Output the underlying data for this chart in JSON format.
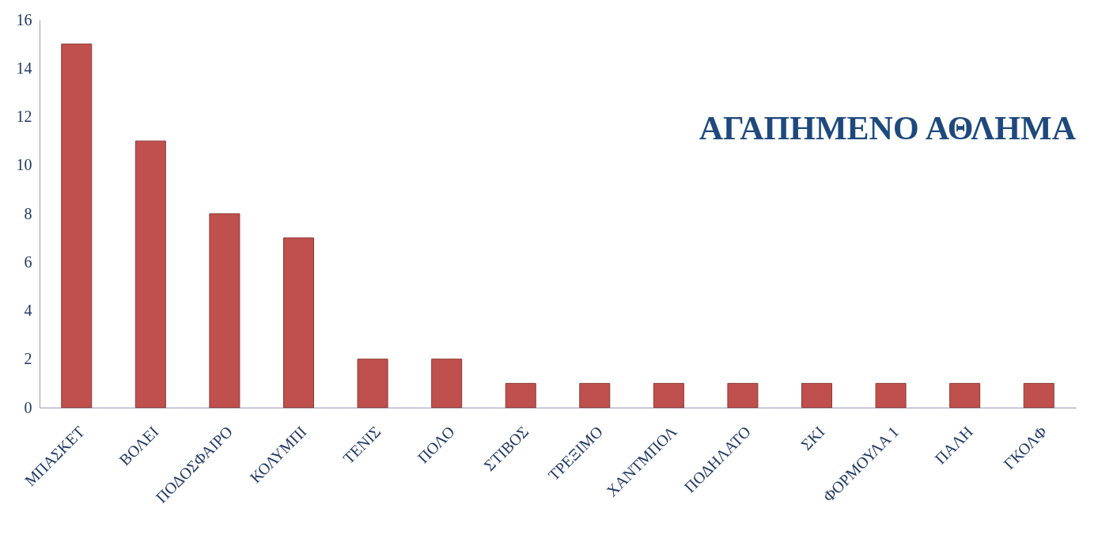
{
  "chart_data": {
    "type": "bar",
    "title": "ΑΓΑΠΗΜΕΝΟ ΑΘΛΗΜΑ",
    "categories": [
      "ΜΠΑΣΚΕΤ",
      "ΒΟΛΕΙ",
      "ΠΟΔΟΣΦΑΙΡΟ",
      "ΚΟΛΥΜΠΙ",
      "ΤΕΝΙΣ",
      "ΠΟΛΟ",
      "ΣΤΙΒΟΣ",
      "ΤΡΕΞΙΜΟ",
      "ΧΑΝΤΜΠΟΛ",
      "ΠΟΔΗΛΑΤΟ",
      "ΣΚΙ",
      "ΦΟΡΜΟΥΛΑ 1",
      "ΠΑΛΗ",
      "ΓΚΟΛΦ"
    ],
    "values": [
      15,
      11,
      8,
      7,
      2,
      2,
      1,
      1,
      1,
      1,
      1,
      1,
      1,
      1
    ],
    "color": "#c0504d",
    "ylim": [
      0,
      16
    ],
    "yticks": [
      0,
      2,
      4,
      6,
      8,
      10,
      12,
      14,
      16
    ],
    "grid": false
  }
}
